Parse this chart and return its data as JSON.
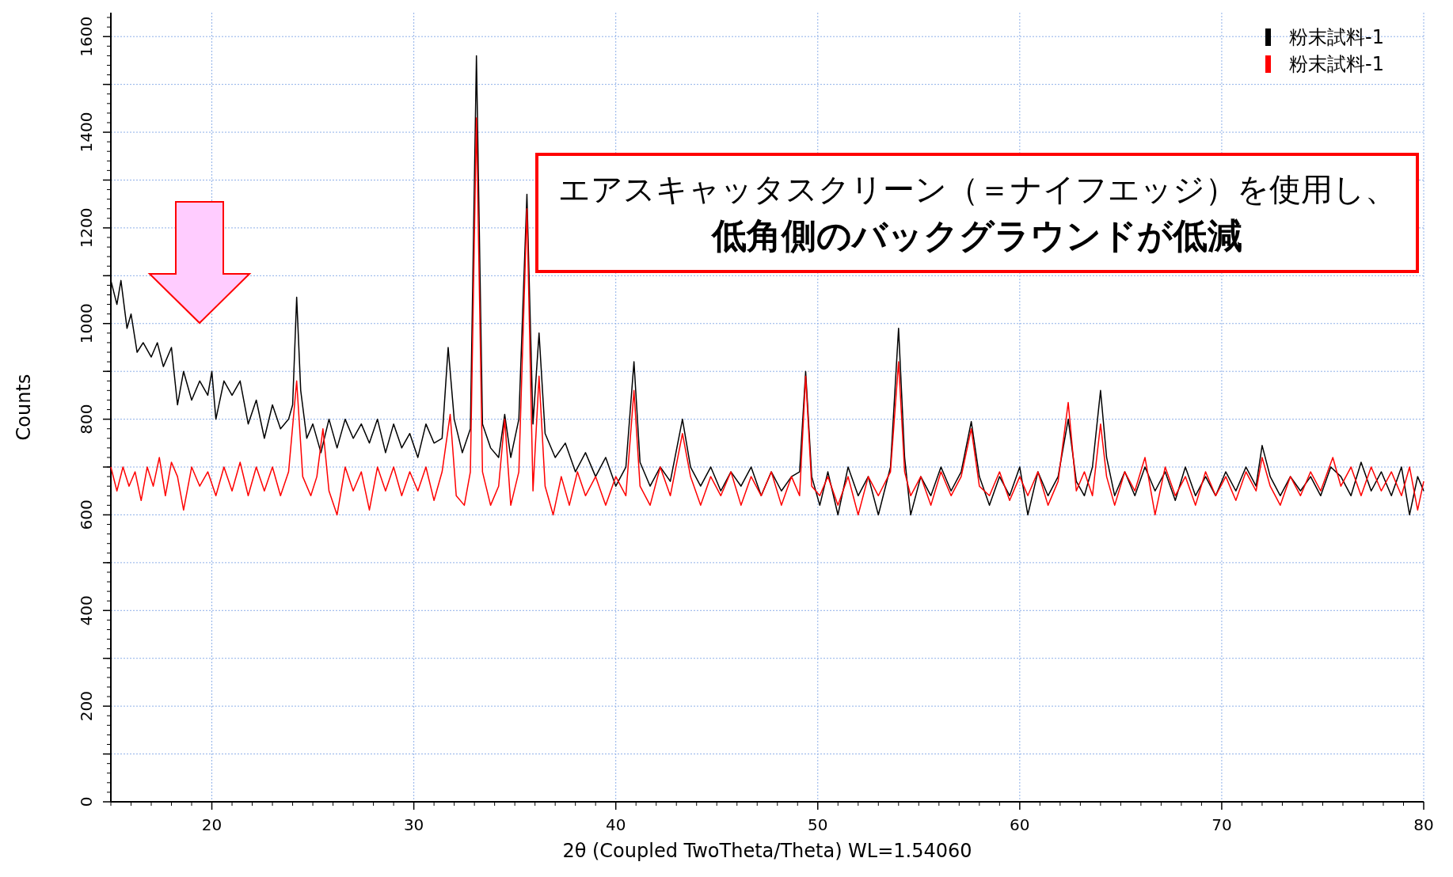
{
  "chart_data": {
    "type": "line",
    "xlabel": "2θ (Coupled TwoTheta/Theta) WL=1.54060",
    "ylabel": "Counts",
    "xlim": [
      15,
      80
    ],
    "ylim": [
      0,
      1650
    ],
    "xticks": [
      20,
      30,
      40,
      50,
      60,
      70,
      80
    ],
    "yticks": [
      0,
      {
        "value": 100,
        "label": null
      },
      200,
      {
        "value": 300,
        "label": null
      },
      400,
      {
        "value": 500,
        "label": null
      },
      600,
      {
        "value": 700,
        "label": null
      },
      800,
      {
        "value": 900,
        "label": null
      },
      1000,
      {
        "value": 1100,
        "label": null
      },
      1200,
      {
        "value": 1300,
        "label": null
      },
      1400,
      {
        "value": 1500,
        "label": null
      },
      1600
    ],
    "grid": true,
    "legend": "top right",
    "line_style": "solid",
    "annotations": [
      "エアスキャッタスクリーン（＝ナイフエッジ）を使用し、",
      "低角側のバックグラウンドが低減"
    ],
    "series": [
      {
        "name": "粉末試料-1",
        "color": "#000000",
        "x": [
          15,
          15.3,
          15.5,
          15.8,
          16,
          16.3,
          16.6,
          17,
          17.3,
          17.6,
          18,
          18.3,
          18.6,
          19,
          19.4,
          19.8,
          20,
          20.2,
          20.6,
          21,
          21.4,
          21.8,
          22.2,
          22.6,
          23,
          23.4,
          23.8,
          24.0,
          24.2,
          24.4,
          24.7,
          25,
          25.4,
          25.8,
          26.2,
          26.6,
          27,
          27.4,
          27.8,
          28.2,
          28.6,
          29,
          29.4,
          29.8,
          30.2,
          30.6,
          31,
          31.4,
          31.7,
          32.0,
          32.4,
          32.8,
          33.1,
          33.4,
          33.8,
          34.2,
          34.5,
          34.8,
          35.2,
          35.6,
          35.9,
          36.2,
          36.5,
          37,
          37.5,
          38,
          38.5,
          39,
          39.5,
          40,
          40.5,
          40.9,
          41.2,
          41.7,
          42.2,
          42.7,
          43.3,
          43.7,
          44.2,
          44.7,
          45.2,
          45.7,
          46.2,
          46.7,
          47.2,
          47.7,
          48.2,
          48.7,
          49.1,
          49.4,
          49.7,
          50.1,
          50.5,
          51,
          51.5,
          52,
          52.5,
          53,
          53.6,
          54,
          54.3,
          54.6,
          55.1,
          55.6,
          56.1,
          56.6,
          57.1,
          57.6,
          58,
          58.5,
          59,
          59.5,
          60,
          60.4,
          60.9,
          61.4,
          61.9,
          62.4,
          62.8,
          63.2,
          63.6,
          64,
          64.3,
          64.7,
          65.2,
          65.7,
          66.2,
          66.7,
          67.2,
          67.7,
          68.2,
          68.7,
          69.2,
          69.7,
          70.2,
          70.7,
          71.2,
          71.7,
          72,
          72.4,
          72.9,
          73.4,
          73.9,
          74.4,
          74.9,
          75.4,
          75.9,
          76.4,
          76.9,
          77.4,
          77.9,
          78.4,
          78.9,
          79.3,
          79.7,
          80
        ],
        "values": [
          1090,
          1040,
          1090,
          990,
          1020,
          940,
          960,
          930,
          960,
          910,
          950,
          830,
          900,
          840,
          880,
          850,
          900,
          800,
          880,
          850,
          880,
          790,
          840,
          760,
          830,
          780,
          800,
          830,
          1055,
          860,
          760,
          790,
          730,
          800,
          740,
          800,
          760,
          790,
          750,
          800,
          730,
          790,
          740,
          770,
          720,
          790,
          750,
          760,
          950,
          800,
          730,
          780,
          1560,
          790,
          740,
          720,
          810,
          720,
          800,
          1270,
          790,
          980,
          770,
          720,
          750,
          690,
          730,
          680,
          720,
          660,
          700,
          920,
          710,
          660,
          700,
          670,
          800,
          700,
          660,
          700,
          650,
          690,
          660,
          700,
          640,
          690,
          650,
          680,
          690,
          900,
          680,
          620,
          690,
          600,
          700,
          640,
          680,
          600,
          700,
          990,
          720,
          600,
          680,
          640,
          700,
          650,
          690,
          795,
          680,
          620,
          680,
          640,
          700,
          600,
          690,
          640,
          680,
          800,
          670,
          640,
          700,
          860,
          720,
          640,
          690,
          640,
          700,
          650,
          690,
          630,
          700,
          640,
          680,
          640,
          690,
          650,
          700,
          660,
          745,
          680,
          640,
          680,
          650,
          680,
          640,
          700,
          680,
          640,
          710,
          650,
          690,
          640,
          700,
          600,
          680,
          650
        ]
      },
      {
        "name": "粉末試料-1",
        "color": "#ff0000",
        "x": [
          15,
          15.3,
          15.6,
          15.9,
          16.2,
          16.5,
          16.8,
          17.1,
          17.4,
          17.7,
          18,
          18.3,
          18.6,
          19,
          19.4,
          19.8,
          20.2,
          20.6,
          21,
          21.4,
          21.8,
          22.2,
          22.6,
          23,
          23.4,
          23.8,
          24.2,
          24.5,
          24.9,
          25.2,
          25.5,
          25.8,
          26.2,
          26.6,
          27,
          27.4,
          27.8,
          28.2,
          28.6,
          29,
          29.4,
          29.8,
          30.2,
          30.6,
          31,
          31.4,
          31.8,
          32.1,
          32.5,
          32.8,
          33.1,
          33.4,
          33.8,
          34.2,
          34.5,
          34.8,
          35.2,
          35.6,
          35.9,
          36.2,
          36.5,
          36.9,
          37.3,
          37.7,
          38.1,
          38.5,
          39,
          39.5,
          40,
          40.5,
          40.9,
          41.2,
          41.7,
          42.2,
          42.7,
          43.3,
          43.7,
          44.2,
          44.7,
          45.2,
          45.7,
          46.2,
          46.7,
          47.2,
          47.7,
          48.2,
          48.7,
          49.1,
          49.4,
          49.7,
          50.1,
          50.5,
          51,
          51.5,
          52,
          52.5,
          53,
          53.6,
          54,
          54.3,
          54.6,
          55.1,
          55.6,
          56.1,
          56.6,
          57.1,
          57.6,
          58,
          58.5,
          59,
          59.5,
          60,
          60.4,
          60.9,
          61.4,
          61.9,
          62.4,
          62.8,
          63.2,
          63.6,
          64,
          64.3,
          64.7,
          65.2,
          65.7,
          66.2,
          66.7,
          67.2,
          67.7,
          68.2,
          68.7,
          69.2,
          69.7,
          70.2,
          70.7,
          71.2,
          71.7,
          72,
          72.4,
          72.9,
          73.4,
          73.9,
          74.4,
          74.9,
          75.5,
          75.9,
          76.4,
          76.9,
          77.4,
          77.9,
          78.4,
          78.9,
          79.3,
          79.7,
          80
        ],
        "values": [
          700,
          650,
          700,
          660,
          690,
          630,
          700,
          660,
          720,
          640,
          710,
          680,
          610,
          700,
          660,
          690,
          640,
          700,
          650,
          710,
          640,
          700,
          650,
          700,
          640,
          690,
          880,
          680,
          640,
          680,
          780,
          650,
          600,
          700,
          650,
          690,
          610,
          700,
          650,
          700,
          640,
          690,
          650,
          700,
          630,
          690,
          810,
          640,
          620,
          690,
          1430,
          690,
          620,
          660,
          800,
          620,
          690,
          1240,
          650,
          890,
          660,
          600,
          680,
          620,
          690,
          640,
          680,
          620,
          680,
          640,
          860,
          660,
          620,
          700,
          640,
          770,
          680,
          620,
          680,
          640,
          690,
          620,
          680,
          640,
          690,
          620,
          680,
          640,
          890,
          660,
          640,
          680,
          620,
          680,
          600,
          680,
          640,
          690,
          920,
          690,
          640,
          680,
          620,
          690,
          640,
          680,
          780,
          660,
          640,
          690,
          630,
          680,
          640,
          690,
          620,
          670,
          835,
          650,
          690,
          640,
          790,
          680,
          620,
          690,
          650,
          720,
          600,
          700,
          640,
          680,
          620,
          690,
          640,
          680,
          630,
          690,
          650,
          720,
          660,
          620,
          680,
          640,
          690,
          650,
          720,
          660,
          700,
          640,
          700,
          650,
          690,
          640,
          700,
          610,
          670
        ]
      }
    ]
  }
}
